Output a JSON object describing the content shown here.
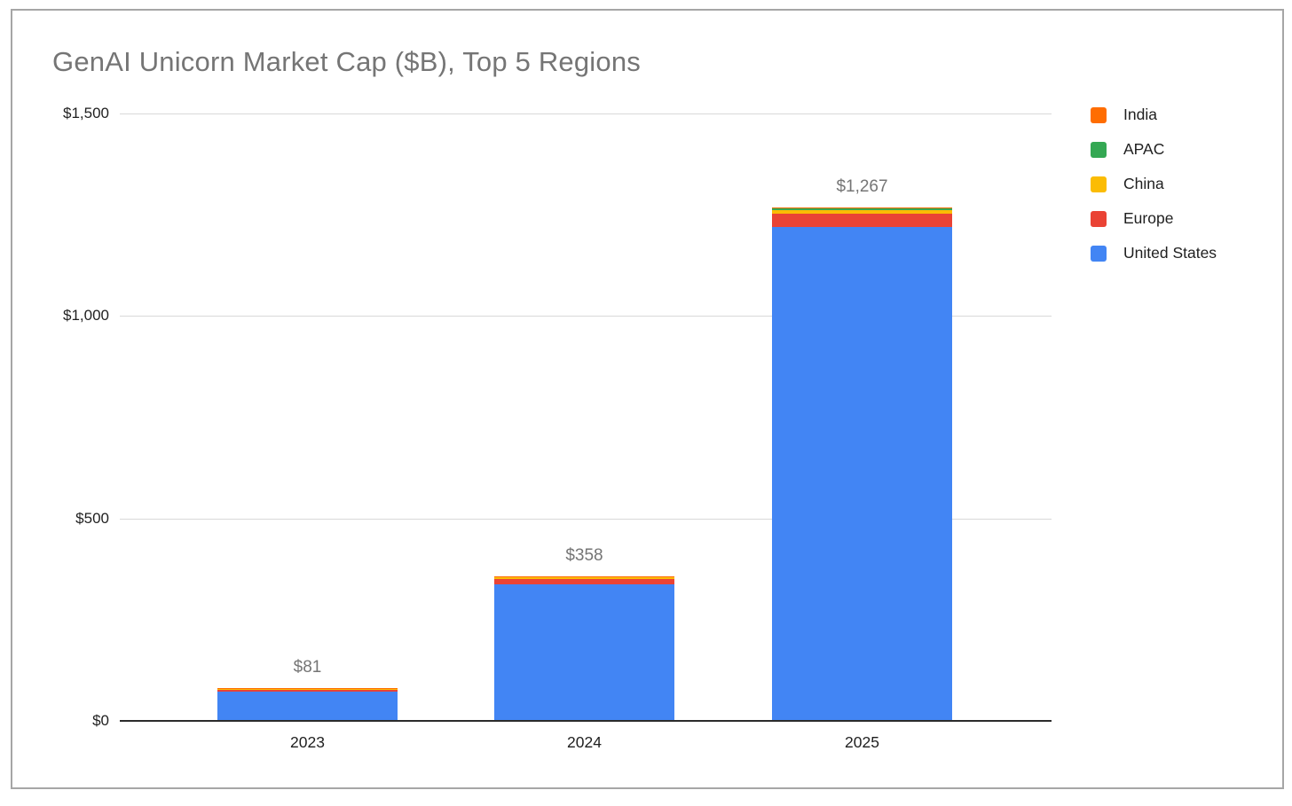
{
  "frame": {
    "border_color": "#a6a6a6",
    "background": "#ffffff"
  },
  "title": {
    "text": "GenAI Unicorn Market Cap ($B), Top 5 Regions",
    "color": "#757575"
  },
  "legend": {
    "position": "right",
    "items": [
      {
        "label": "India",
        "color": "#FF6D01"
      },
      {
        "label": "APAC",
        "color": "#34A853"
      },
      {
        "label": "China",
        "color": "#FBBC04"
      },
      {
        "label": "Europe",
        "color": "#EA4335"
      },
      {
        "label": "United States",
        "color": "#4285F4"
      }
    ]
  },
  "chart_data": {
    "type": "bar",
    "stacked": true,
    "title": "GenAI Unicorn Market Cap ($B), Top 5 Regions",
    "categories": [
      "2023",
      "2024",
      "2025"
    ],
    "series": [
      {
        "name": "United States",
        "color": "#4285F4",
        "values": [
          73,
          338,
          1220
        ]
      },
      {
        "name": "Europe",
        "color": "#EA4335",
        "values": [
          4,
          13,
          33
        ]
      },
      {
        "name": "China",
        "color": "#FBBC04",
        "values": [
          2,
          4,
          9
        ]
      },
      {
        "name": "APAC",
        "color": "#34A853",
        "values": [
          1,
          1,
          3
        ]
      },
      {
        "name": "India",
        "color": "#FF6D01",
        "values": [
          1,
          2,
          2
        ]
      }
    ],
    "totals": [
      81,
      358,
      1267
    ],
    "total_labels": [
      "$81",
      "$358",
      "$1,267"
    ],
    "xlabel": "",
    "ylabel": "",
    "ylim": [
      0,
      1500
    ],
    "yticks": [
      {
        "value": 0,
        "label": "$0"
      },
      {
        "value": 500,
        "label": "$500"
      },
      {
        "value": 1000,
        "label": "$1,000"
      },
      {
        "value": 1500,
        "label": "$1,500"
      }
    ],
    "grid": true,
    "legend_position": "right",
    "legend_order_top_to_bottom": [
      "India",
      "APAC",
      "China",
      "Europe",
      "United States"
    ],
    "data_label_color": "#757575",
    "axis_label_color": "#1f1f1f"
  }
}
